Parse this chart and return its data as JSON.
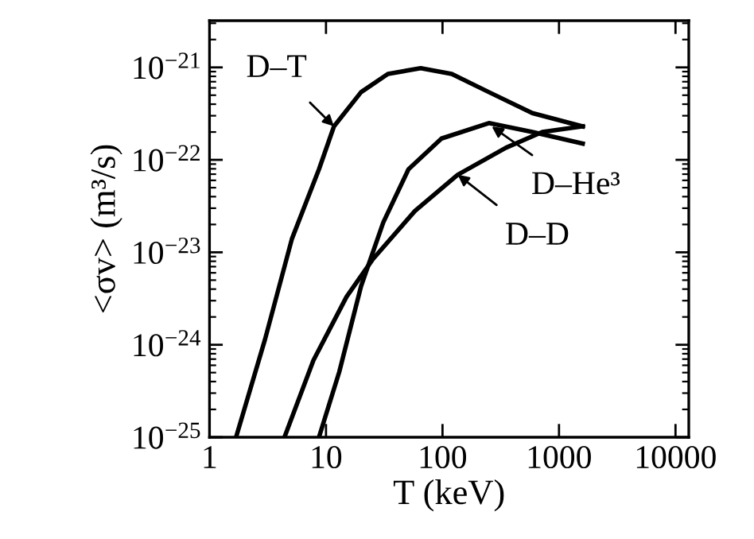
{
  "chart_data": {
    "type": "line",
    "xlabel": "T (keV)",
    "ylabel": "<σv> (m³/s)",
    "log": "xy",
    "grid": false,
    "marker": "none",
    "line_style": "solid",
    "xlim": [
      1,
      13000
    ],
    "ylim": [
      1e-25,
      3.2e-21
    ],
    "xticks": [
      1,
      10,
      100,
      1000,
      10000
    ],
    "yticks": [
      {
        "value": 1e-25,
        "label": "10$^{−25}$"
      },
      {
        "value": 1e-24,
        "label": "10$^{−24}$"
      },
      {
        "value": 1e-23,
        "label": "10$^{−23}$"
      },
      {
        "value": 1e-22,
        "label": "10$^{−22}$"
      },
      {
        "value": 1e-21,
        "label": "10$^{−21}$"
      }
    ],
    "series": [
      {
        "color": "#000000",
        "x": [
          1.69,
          3.0,
          5.1,
          8.7,
          11.7,
          20,
          34,
          65,
          120,
          250,
          590,
          1600
        ],
        "values": [
          1e-25,
          1.15e-24,
          1.4e-23,
          7.9e-23,
          2.3e-22,
          5.4e-22,
          8.5e-22,
          9.8e-22,
          8.5e-22,
          5.4e-22,
          3.2e-22,
          2.3e-22
        ]
      },
      {
        "color": "#000000",
        "x": [
          8.7,
          13,
          20,
          31,
          51,
          98,
          250,
          590,
          1600
        ],
        "values": [
          1e-25,
          5.1e-25,
          4.3e-24,
          2.1e-23,
          7.9e-23,
          1.7e-22,
          2.5e-22,
          2e-22,
          1.5e-22
        ]
      },
      {
        "color": "#000000",
        "x": [
          4.4,
          7.8,
          15,
          25,
          58,
          135,
          350,
          720,
          1600
        ],
        "values": [
          1e-25,
          6.8e-25,
          3.3e-24,
          8.3e-24,
          2.8e-23,
          6.9e-23,
          1.35e-22,
          2e-22,
          2.3e-22
        ]
      }
    ],
    "annotations": [
      {
        "text": "D–T",
        "x": 11.7,
        "y": 2.3e-22
      },
      {
        "text": "D–He³",
        "x": 265,
        "y": 2.3e-22
      },
      {
        "text": "D–D",
        "x": 135,
        "y": 6.9e-23
      }
    ]
  }
}
